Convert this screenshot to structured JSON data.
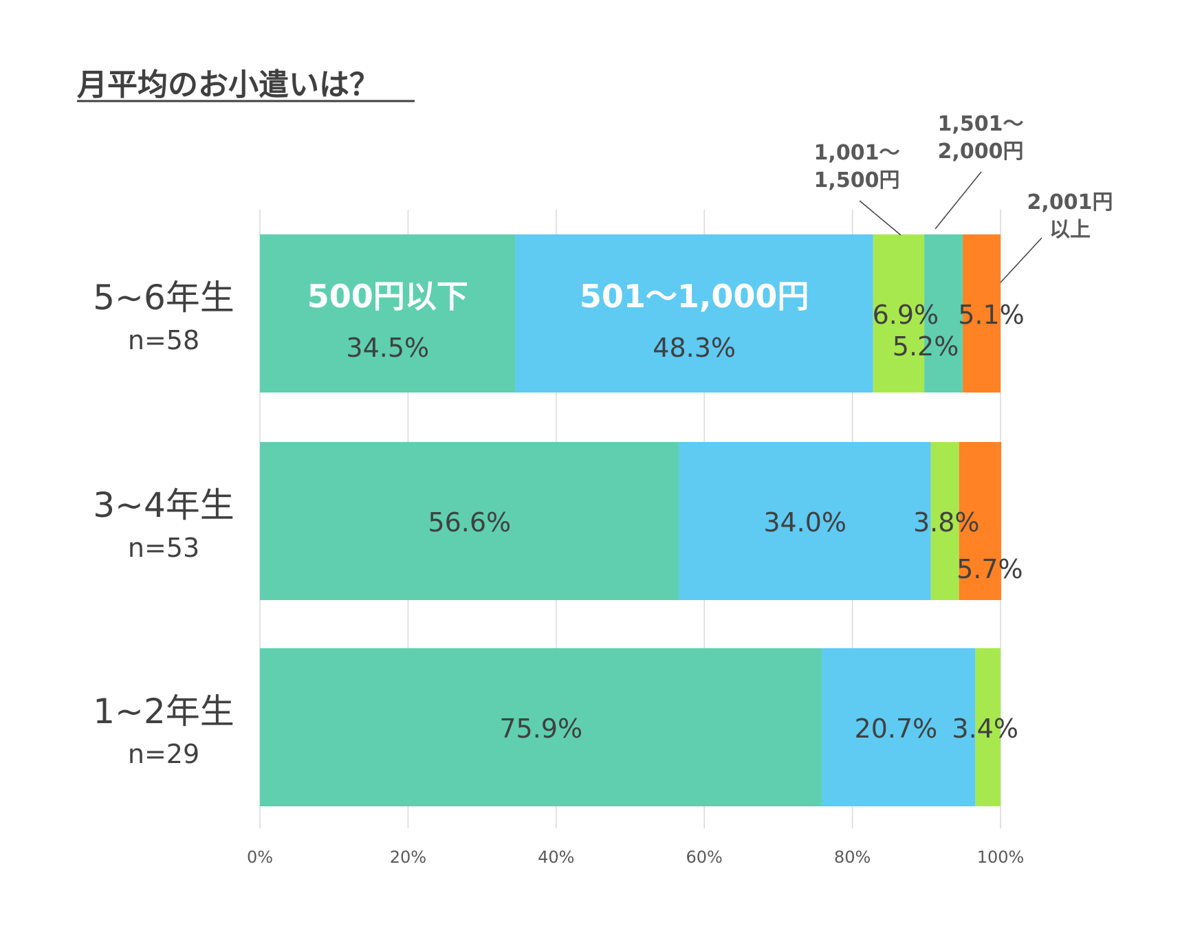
{
  "chart_data": {
    "type": "bar",
    "orientation": "horizontal",
    "stacked": true,
    "title": "月平均のお小遣いは？",
    "xlim": [
      0,
      100
    ],
    "x_ticks": [
      "0%",
      "20%",
      "40%",
      "60%",
      "80%",
      "100%"
    ],
    "grid": true,
    "categories": [
      {
        "label": "5~6年生",
        "n": "n=58"
      },
      {
        "label": "3~4年生",
        "n": "n=53"
      },
      {
        "label": "1~2年生",
        "n": "n=29"
      }
    ],
    "series": [
      {
        "name": "500円以下",
        "color": "#5fcfb0",
        "values": [
          34.5,
          56.6,
          75.9
        ],
        "labels": [
          "34.5%",
          "56.6%",
          "75.9%"
        ]
      },
      {
        "name": "501～1,000円",
        "color": "#5fcaf2",
        "values": [
          48.3,
          34.0,
          20.7
        ],
        "labels": [
          "48.3%",
          "34.0%",
          "20.7%"
        ]
      },
      {
        "name": "1,001～1,500円",
        "color": "#a8e84f",
        "values": [
          6.9,
          3.8,
          3.4
        ],
        "labels": [
          "6.9%",
          "3.8%",
          "3.4%"
        ]
      },
      {
        "name": "1,501～2,000円",
        "color": "#5fcfb0",
        "values": [
          5.2,
          0,
          0
        ],
        "labels": [
          "5.2%",
          "",
          ""
        ]
      },
      {
        "name": "2,001円以上",
        "color": "#ff8224",
        "values": [
          5.1,
          5.7,
          0
        ],
        "labels": [
          "5.1%",
          "5.7%",
          ""
        ]
      }
    ],
    "in_bar_series_names": [
      "500円以下",
      "501～1,000円"
    ],
    "callouts": {
      "s2": [
        "1,001～",
        "1,500円"
      ],
      "s3": [
        "1,501～",
        "2,000円"
      ],
      "s4": [
        "2,001円",
        "以上"
      ]
    }
  }
}
